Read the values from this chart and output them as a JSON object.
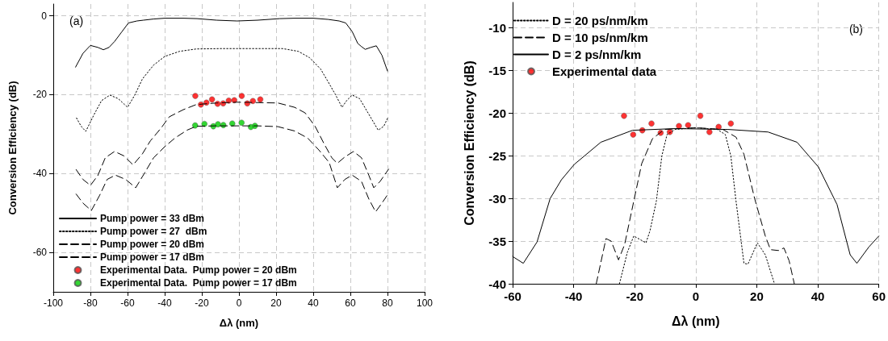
{
  "chart_data": [
    {
      "type": "line",
      "xlabel": "Δλ (nm)",
      "ylabel": "Conversion Efficiency (dB)",
      "annotations": [
        "(a)"
      ],
      "xlim": [
        -100,
        100
      ],
      "xticks": [
        -100,
        -80,
        -60,
        -40,
        -20,
        0,
        20,
        40,
        60,
        80,
        100
      ],
      "ylim": [
        -70,
        3
      ],
      "yticks": [
        -60,
        -40,
        -20,
        0
      ],
      "grid": true,
      "legend": "bottom left",
      "series": [
        {
          "name": "Pump power = 33 dBm",
          "line_style": "solid",
          "color": "#000000",
          "x": [
            -88,
            -84,
            -80,
            -76,
            -73,
            -70,
            -67,
            -63,
            -59.5,
            -55,
            -51.5,
            -46,
            -40,
            -30,
            -22.6,
            -12,
            -1,
            10,
            22,
            30,
            40,
            48,
            54,
            57.5,
            61,
            64,
            66,
            68,
            71,
            74,
            77,
            80
          ],
          "values": [
            -13,
            -9.5,
            -7.5,
            -8,
            -8.6,
            -8,
            -6.5,
            -4,
            -1.8,
            -1.3,
            -1.1,
            -0.8,
            -0.6,
            -0.6,
            -0.7,
            -1.1,
            -1.3,
            -1.1,
            -0.7,
            -0.6,
            -0.6,
            -0.9,
            -1.3,
            -1.8,
            -4,
            -7,
            -7.8,
            -8.5,
            -8,
            -7.6,
            -10,
            -14
          ]
        },
        {
          "name": "Pump power = 27  dBm",
          "line_style": "dotted",
          "color": "#000000",
          "x": [
            -87.5,
            -85,
            -82.5,
            -78,
            -74,
            -69.5,
            -65,
            -60,
            -56,
            -52,
            -46,
            -40,
            -32,
            -23,
            -10,
            -1,
            10,
            23.5,
            32,
            38,
            44,
            48,
            52,
            55.5,
            58,
            61,
            65,
            70,
            75,
            78,
            80
          ],
          "values": [
            -25.9,
            -28,
            -29.3,
            -25,
            -21.5,
            -20.1,
            -21,
            -23.2,
            -20,
            -16,
            -12.5,
            -10.3,
            -9,
            -8.4,
            -8.3,
            -8.3,
            -8.3,
            -8.3,
            -9,
            -10.6,
            -13.5,
            -16.7,
            -20,
            -23.2,
            -21.5,
            -20.1,
            -21,
            -25,
            -29,
            -28,
            -26
          ]
        },
        {
          "name": "Pump power = 20 dBm",
          "line_style": "dashed",
          "color": "#000000",
          "x": [
            -87.7,
            -84,
            -80,
            -76,
            -72,
            -67,
            -62,
            -57,
            -52,
            -47.7,
            -42,
            -37.5,
            -30,
            -23,
            -12,
            -1,
            10,
            21,
            30,
            35.6,
            41,
            45.8,
            50,
            53,
            57,
            61.7,
            66,
            70,
            72.6,
            76,
            80.6
          ],
          "values": [
            -39,
            -41.5,
            -43,
            -40.5,
            -36,
            -34.4,
            -35.5,
            -37.8,
            -35,
            -31.7,
            -28.5,
            -25.6,
            -23.8,
            -22.5,
            -22.1,
            -21.9,
            -22,
            -22.1,
            -23.2,
            -24.6,
            -28,
            -32.4,
            -36,
            -37.4,
            -35.8,
            -34.4,
            -36,
            -40.5,
            -43.6,
            -42,
            -38.9
          ]
        },
        {
          "name": "Pump power = 17 dBm",
          "line_style": "dashed",
          "color": "#000000",
          "x": [
            -87.7,
            -84,
            -79.5,
            -75,
            -71,
            -66.5,
            -61,
            -55.6,
            -51,
            -46,
            -40,
            -34.5,
            -28,
            -23,
            -12,
            -1,
            10,
            21,
            30,
            37,
            43,
            48.6,
            53,
            57,
            61,
            66,
            70,
            73.6,
            77,
            80.6
          ],
          "values": [
            -45.2,
            -47.5,
            -49.4,
            -45.5,
            -41.5,
            -40.4,
            -41.5,
            -43.6,
            -40,
            -36,
            -33.2,
            -31,
            -29,
            -28,
            -27.9,
            -27.9,
            -27.9,
            -28.1,
            -29.2,
            -31,
            -34,
            -37.2,
            -43.6,
            -41.5,
            -40.4,
            -42,
            -46.5,
            -49.7,
            -47.5,
            -45
          ]
        },
        {
          "name": "Experimental Data.  Pump power = 20 dBm",
          "type": "scatter",
          "marker": "circle",
          "color": "#ff0000",
          "x": [
            -23.5,
            -20.5,
            -17.5,
            -14.5,
            -11.5,
            -8.5,
            -5.5,
            -2.5,
            1.5,
            4.5,
            7.5,
            11.5
          ],
          "values": [
            -20.3,
            -22.5,
            -22,
            -21.2,
            -22.3,
            -22.2,
            -21.5,
            -21.4,
            -20.3,
            -22.2,
            -21.6,
            -21.2
          ]
        },
        {
          "name": "Experimental Data.  Pump power = 17 dBm",
          "type": "scatter",
          "marker": "circle",
          "color": "#00cc00",
          "x": [
            -23.6,
            -18.6,
            -13.8,
            -11.3,
            -8.4,
            -3.6,
            1.4,
            6.4,
            8.6
          ],
          "values": [
            -27.8,
            -27.4,
            -28,
            -27.5,
            -27.7,
            -27.3,
            -27.1,
            -28.2,
            -27.9
          ]
        }
      ]
    },
    {
      "type": "line",
      "xlabel": "Δλ (nm)",
      "ylabel": "Conversion Efficiency (dB)",
      "annotations": [
        "(b)"
      ],
      "xlim": [
        -60,
        60
      ],
      "xticks": [
        -60,
        -40,
        -20,
        0,
        20,
        40,
        60
      ],
      "ylim": [
        -40,
        -7
      ],
      "yticks": [
        -40,
        -35,
        -30,
        -25,
        -20,
        -15,
        -10
      ],
      "grid": true,
      "legend": "top left",
      "series": [
        {
          "name": "D = 20 ps/nm/km",
          "line_style": "dotted",
          "color": "#000000",
          "x": [
            -25,
            -22.4,
            -20.3,
            -16.3,
            -15,
            -12.9,
            -11.1,
            -9.4,
            -6.8,
            0,
            7.1,
            9.7,
            11.5,
            13.2,
            15.8,
            17.1,
            20.2,
            22.8,
            25.8
          ],
          "values": [
            -40,
            -36.3,
            -34.4,
            -35.2,
            -33.8,
            -30.3,
            -25,
            -22.5,
            -21.9,
            -21.7,
            -21.9,
            -22.5,
            -25,
            -30.3,
            -37.6,
            -37.7,
            -35.2,
            -36.6,
            -40
          ]
        },
        {
          "name": "D = 10 ps/nm/km",
          "line_style": "dashed",
          "color": "#000000",
          "x": [
            -32.6,
            -29.4,
            -27.7,
            -25.3,
            -23.3,
            -20.3,
            -17.7,
            -14.2,
            -10.3,
            0.2,
            8.9,
            13.2,
            15.8,
            19.3,
            22.8,
            24.5,
            27.1,
            28.9,
            30.6,
            32.3
          ],
          "values": [
            -40,
            -34.7,
            -35,
            -37.2,
            -35.4,
            -30.3,
            -25.9,
            -23,
            -21.9,
            -21.7,
            -21.9,
            -22.8,
            -24.8,
            -30,
            -34.4,
            -36,
            -36.1,
            -35.8,
            -37.3,
            -40
          ]
        },
        {
          "name": "D = 2 ps/nm/km",
          "line_style": "solid",
          "color": "#000000",
          "x": [
            -60,
            -56.5,
            -52,
            -47.7,
            -44,
            -39.8,
            -31.1,
            -20.7,
            -6.8,
            10.6,
            23.7,
            33.2,
            40.2,
            46.3,
            50.6,
            52.8,
            56.7,
            60
          ],
          "values": [
            -36.8,
            -37.6,
            -35.1,
            -30,
            -27.8,
            -26,
            -23.4,
            -22,
            -21.8,
            -21.9,
            -22.2,
            -23.4,
            -26.3,
            -30.7,
            -36.6,
            -37.6,
            -35.7,
            -34.4
          ]
        },
        {
          "name": "Experimental data",
          "type": "scatter",
          "marker": "circle",
          "color": "#ff0000",
          "x": [
            -23.5,
            -20.5,
            -17.5,
            -14.5,
            -11.5,
            -8.5,
            -5.5,
            -2.5,
            1.5,
            4.5,
            7.5,
            11.5
          ],
          "values": [
            -20.3,
            -22.5,
            -22,
            -21.2,
            -22.3,
            -22.2,
            -21.5,
            -21.4,
            -20.3,
            -22.2,
            -21.6,
            -21.2
          ]
        }
      ]
    }
  ]
}
